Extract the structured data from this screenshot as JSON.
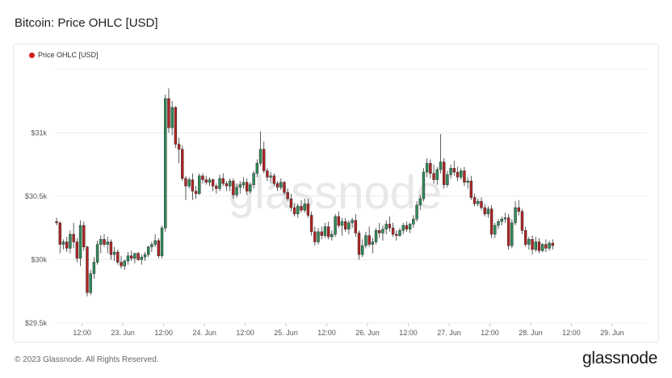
{
  "title": "Bitcoin: Price OHLC [USD]",
  "legend_label": "Price OHLC [USD]",
  "watermark": "glassnode",
  "footer": "© 2023 Glassnode. All Rights Reserved.",
  "brand": "glassnode",
  "colors": {
    "up": "#2e8b57",
    "down": "#b22222",
    "legend_dot": "#d11f1f"
  },
  "chart_data": {
    "type": "candlestick",
    "title": "Bitcoin: Price OHLC [USD]",
    "series_name": "Price OHLC [USD]",
    "ylim": [
      29500,
      31550
    ],
    "yticks": [
      {
        "value": 29500,
        "label": "$29.5k"
      },
      {
        "value": 30000,
        "label": "$30k"
      },
      {
        "value": 30500,
        "label": "$30.5k"
      },
      {
        "value": 31000,
        "label": "$31k"
      }
    ],
    "xlim": [
      0,
      174
    ],
    "xticks": [
      {
        "pos": 8,
        "label": "12:00"
      },
      {
        "pos": 20,
        "label": "23. Jun"
      },
      {
        "pos": 32,
        "label": "12:00"
      },
      {
        "pos": 44,
        "label": "24. Jun"
      },
      {
        "pos": 56,
        "label": "12:00"
      },
      {
        "pos": 68,
        "label": "25. Jun"
      },
      {
        "pos": 80,
        "label": "12:00"
      },
      {
        "pos": 92,
        "label": "26. Jun"
      },
      {
        "pos": 104,
        "label": "12:00"
      },
      {
        "pos": 116,
        "label": "27. Jun"
      },
      {
        "pos": 128,
        "label": "12:00"
      },
      {
        "pos": 140,
        "label": "28. Jun"
      },
      {
        "pos": 152,
        "label": "12:00"
      },
      {
        "pos": 164,
        "label": "29. Jun"
      }
    ],
    "grid": true,
    "legend": "top-left",
    "ohlc": [
      [
        30300,
        30330,
        30270,
        30290
      ],
      [
        30290,
        30300,
        30050,
        30120
      ],
      [
        30120,
        30160,
        30080,
        30140
      ],
      [
        30140,
        30180,
        30060,
        30090
      ],
      [
        30090,
        30230,
        30050,
        30200
      ],
      [
        30200,
        30290,
        30090,
        30140
      ],
      [
        30140,
        30170,
        29980,
        30010
      ],
      [
        30010,
        30310,
        29950,
        30270
      ],
      [
        30270,
        30300,
        30070,
        30100
      ],
      [
        30100,
        30110,
        29710,
        29740
      ],
      [
        29740,
        29920,
        29720,
        29890
      ],
      [
        29890,
        30020,
        29850,
        29980
      ],
      [
        29980,
        30150,
        29960,
        30120
      ],
      [
        30120,
        30190,
        30050,
        30160
      ],
      [
        30160,
        30200,
        30100,
        30120
      ],
      [
        30120,
        30180,
        30050,
        30140
      ],
      [
        30140,
        30160,
        30000,
        30040
      ],
      [
        30040,
        30100,
        29990,
        30060
      ],
      [
        30060,
        30080,
        29960,
        29980
      ],
      [
        29980,
        30030,
        29930,
        29950
      ],
      [
        29950,
        30000,
        29920,
        29990
      ],
      [
        29990,
        30060,
        29960,
        30030
      ],
      [
        30030,
        30070,
        29990,
        30010
      ],
      [
        30010,
        30050,
        29970,
        30050
      ],
      [
        30050,
        30060,
        29990,
        30000
      ],
      [
        30000,
        30040,
        29960,
        30020
      ],
      [
        30020,
        30060,
        29990,
        30040
      ],
      [
        30040,
        30110,
        30020,
        30100
      ],
      [
        30100,
        30140,
        30060,
        30120
      ],
      [
        30120,
        30200,
        30100,
        30150
      ],
      [
        30150,
        30170,
        30010,
        30030
      ],
      [
        30030,
        30270,
        30010,
        30250
      ],
      [
        30250,
        31300,
        30220,
        31270
      ],
      [
        31270,
        31350,
        31000,
        31040
      ],
      [
        31040,
        31250,
        30980,
        31200
      ],
      [
        31200,
        31210,
        30880,
        30910
      ],
      [
        30910,
        30960,
        30760,
        30870
      ],
      [
        30870,
        30900,
        30620,
        30640
      ],
      [
        30640,
        30660,
        30470,
        30580
      ],
      [
        30580,
        30650,
        30560,
        30630
      ],
      [
        30630,
        30680,
        30470,
        30540
      ],
      [
        30540,
        30580,
        30480,
        30520
      ],
      [
        30520,
        30680,
        30510,
        30660
      ],
      [
        30660,
        30680,
        30600,
        30630
      ],
      [
        30630,
        30660,
        30590,
        30610
      ],
      [
        30610,
        30650,
        30580,
        30630
      ],
      [
        30630,
        30640,
        30540,
        30580
      ],
      [
        30580,
        30600,
        30520,
        30560
      ],
      [
        30560,
        30670,
        30540,
        30640
      ],
      [
        30640,
        30680,
        30580,
        30600
      ],
      [
        30600,
        30620,
        30540,
        30580
      ],
      [
        30580,
        30640,
        30540,
        30620
      ],
      [
        30620,
        30640,
        30480,
        30510
      ],
      [
        30510,
        30600,
        30490,
        30570
      ],
      [
        30570,
        30620,
        30520,
        30590
      ],
      [
        30590,
        30650,
        30560,
        30610
      ],
      [
        30610,
        30640,
        30510,
        30540
      ],
      [
        30540,
        30610,
        30520,
        30590
      ],
      [
        30590,
        30700,
        30560,
        30680
      ],
      [
        30680,
        30790,
        30650,
        30760
      ],
      [
        30760,
        31010,
        30740,
        30870
      ],
      [
        30870,
        30930,
        30680,
        30700
      ],
      [
        30700,
        30720,
        30620,
        30650
      ],
      [
        30650,
        30690,
        30600,
        30660
      ],
      [
        30660,
        30680,
        30580,
        30600
      ],
      [
        30600,
        30620,
        30540,
        30570
      ],
      [
        30570,
        30640,
        30550,
        30610
      ],
      [
        30610,
        30620,
        30510,
        30530
      ],
      [
        30530,
        30560,
        30460,
        30480
      ],
      [
        30480,
        30520,
        30380,
        30410
      ],
      [
        30410,
        30440,
        30340,
        30360
      ],
      [
        30360,
        30440,
        30330,
        30420
      ],
      [
        30420,
        30470,
        30370,
        30390
      ],
      [
        30390,
        30480,
        30370,
        30440
      ],
      [
        30440,
        30480,
        30330,
        30350
      ],
      [
        30350,
        30380,
        30190,
        30220
      ],
      [
        30220,
        30260,
        30110,
        30140
      ],
      [
        30140,
        30250,
        30120,
        30220
      ],
      [
        30220,
        30260,
        30160,
        30190
      ],
      [
        30190,
        30290,
        30170,
        30260
      ],
      [
        30260,
        30300,
        30160,
        30180
      ],
      [
        30180,
        30230,
        30150,
        30200
      ],
      [
        30200,
        30360,
        30180,
        30340
      ],
      [
        30340,
        30380,
        30250,
        30270
      ],
      [
        30270,
        30330,
        30190,
        30300
      ],
      [
        30300,
        30330,
        30220,
        30240
      ],
      [
        30240,
        30310,
        30200,
        30290
      ],
      [
        30290,
        30330,
        30250,
        30310
      ],
      [
        30310,
        30360,
        30180,
        30210
      ],
      [
        30210,
        30230,
        30000,
        30040
      ],
      [
        30040,
        30160,
        30020,
        30110
      ],
      [
        30110,
        30220,
        30090,
        30190
      ],
      [
        30190,
        30260,
        30100,
        30120
      ],
      [
        30120,
        30170,
        30050,
        30140
      ],
      [
        30140,
        30250,
        30120,
        30230
      ],
      [
        30230,
        30290,
        30170,
        30210
      ],
      [
        30210,
        30270,
        30150,
        30240
      ],
      [
        30240,
        30310,
        30200,
        30280
      ],
      [
        30280,
        30340,
        30220,
        30250
      ],
      [
        30250,
        30290,
        30180,
        30200
      ],
      [
        30200,
        30230,
        30150,
        30190
      ],
      [
        30190,
        30250,
        30180,
        30230
      ],
      [
        30230,
        30290,
        30200,
        30270
      ],
      [
        30270,
        30300,
        30220,
        30240
      ],
      [
        30240,
        30290,
        30210,
        30280
      ],
      [
        30280,
        30350,
        30250,
        30320
      ],
      [
        30320,
        30460,
        30300,
        30430
      ],
      [
        30430,
        30510,
        30390,
        30480
      ],
      [
        30480,
        30720,
        30460,
        30690
      ],
      [
        30690,
        30800,
        30650,
        30760
      ],
      [
        30760,
        30790,
        30640,
        30680
      ],
      [
        30680,
        30750,
        30600,
        30630
      ],
      [
        30630,
        30730,
        30590,
        30710
      ],
      [
        30710,
        30990,
        30680,
        30770
      ],
      [
        30770,
        30800,
        30560,
        30590
      ],
      [
        30590,
        30700,
        30570,
        30670
      ],
      [
        30670,
        30750,
        30640,
        30720
      ],
      [
        30720,
        30780,
        30660,
        30690
      ],
      [
        30690,
        30730,
        30620,
        30650
      ],
      [
        30650,
        30720,
        30630,
        30700
      ],
      [
        30700,
        30730,
        30580,
        30610
      ],
      [
        30610,
        30650,
        30560,
        30620
      ],
      [
        30620,
        30660,
        30470,
        30490
      ],
      [
        30490,
        30520,
        30420,
        30440
      ],
      [
        30440,
        30480,
        30420,
        30460
      ],
      [
        30460,
        30490,
        30390,
        30410
      ],
      [
        30410,
        30440,
        30340,
        30360
      ],
      [
        30360,
        30420,
        30330,
        30400
      ],
      [
        30400,
        30430,
        30170,
        30200
      ],
      [
        30200,
        30290,
        30170,
        30270
      ],
      [
        30270,
        30320,
        30240,
        30300
      ],
      [
        30300,
        30340,
        30270,
        30320
      ],
      [
        30320,
        30370,
        30290,
        30330
      ],
      [
        30330,
        30360,
        30080,
        30110
      ],
      [
        30110,
        30320,
        30090,
        30290
      ],
      [
        30290,
        30460,
        30270,
        30410
      ],
      [
        30410,
        30470,
        30350,
        30380
      ],
      [
        30380,
        30400,
        30200,
        30230
      ],
      [
        30230,
        30260,
        30100,
        30120
      ],
      [
        30120,
        30180,
        30080,
        30160
      ],
      [
        30160,
        30190,
        30040,
        30080
      ],
      [
        30080,
        30180,
        30060,
        30140
      ],
      [
        30140,
        30170,
        30050,
        30070
      ],
      [
        30070,
        30130,
        30060,
        30120
      ],
      [
        30120,
        30160,
        30060,
        30090
      ],
      [
        30090,
        30150,
        30070,
        30130
      ],
      [
        30130,
        30160,
        30080,
        30110
      ]
    ]
  }
}
